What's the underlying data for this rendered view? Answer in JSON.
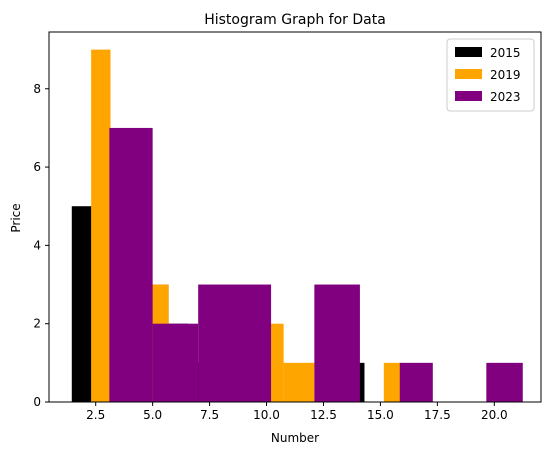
{
  "chart_data": {
    "type": "bar",
    "subtype": "histogram",
    "title": "Histogram Graph for Data",
    "xlabel": "Number",
    "ylabel": "Price",
    "xlim": [
      0.45,
      22.05
    ],
    "ylim": [
      0,
      9.45
    ],
    "xticks": [
      2.5,
      5.0,
      7.5,
      10.0,
      12.5,
      15.0,
      17.5,
      20.0
    ],
    "xtick_labels": [
      "2.5",
      "5.0",
      "7.5",
      "10.0",
      "12.5",
      "15.0",
      "17.5",
      "20.0"
    ],
    "yticks": [
      0,
      2,
      4,
      6,
      8
    ],
    "ytick_labels": [
      "0",
      "2",
      "4",
      "6",
      "8"
    ],
    "legend_position": "top-right",
    "series": [
      {
        "name": "2015",
        "color": "#000000",
        "bins": [
          {
            "x0": 1.45,
            "x1": 2.3,
            "count": 5
          },
          {
            "x0": 2.3,
            "x1": 3.15,
            "count": 5
          },
          {
            "x0": 3.15,
            "x1": 4.0,
            "count": 5
          },
          {
            "x0": 4.0,
            "x1": 4.85,
            "count": 5
          },
          {
            "x0": 4.85,
            "x1": 5.7,
            "count": 3
          },
          {
            "x0": 5.7,
            "x1": 6.55,
            "count": 2
          },
          {
            "x0": 6.55,
            "x1": 7.4,
            "count": 1
          },
          {
            "x0": 13.4,
            "x1": 14.3,
            "count": 1
          }
        ]
      },
      {
        "name": "2019",
        "color": "#ffa500",
        "bins": [
          {
            "x0": 2.3,
            "x1": 3.15,
            "count": 9
          },
          {
            "x0": 4.0,
            "x1": 4.85,
            "count": 3
          },
          {
            "x0": 4.85,
            "x1": 5.7,
            "count": 3
          },
          {
            "x0": 9.9,
            "x1": 10.75,
            "count": 2
          },
          {
            "x0": 10.75,
            "x1": 12.1,
            "count": 1
          },
          {
            "x0": 15.15,
            "x1": 15.95,
            "count": 1
          }
        ]
      },
      {
        "name": "2023",
        "color": "#800080",
        "bins": [
          {
            "x0": 3.1,
            "x1": 5.0,
            "count": 7
          },
          {
            "x0": 5.0,
            "x1": 7.0,
            "count": 2
          },
          {
            "x0": 7.0,
            "x1": 10.2,
            "count": 3
          },
          {
            "x0": 12.1,
            "x1": 14.1,
            "count": 3
          },
          {
            "x0": 15.85,
            "x1": 17.3,
            "count": 1
          },
          {
            "x0": 19.65,
            "x1": 21.25,
            "count": 1
          }
        ]
      }
    ]
  }
}
